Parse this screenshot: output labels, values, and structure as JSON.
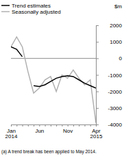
{
  "chart_data": {
    "type": "line",
    "y_label": "$m",
    "annotations": [
      "(a) A trend break has been applied to May 2014."
    ],
    "categories": [
      "Jan 2014",
      null,
      null,
      null,
      null,
      "Jun",
      null,
      null,
      null,
      null,
      "Nov",
      null,
      null,
      null,
      null,
      "Apr 2015"
    ],
    "series": [
      {
        "name": "Trend estimates",
        "color": "#000000",
        "values": [
          700,
          550,
          100,
          null,
          -1650,
          -1700,
          -1600,
          -1400,
          -1200,
          -1100,
          -1050,
          -1100,
          -1300,
          -1500,
          -1650,
          -1800
        ]
      },
      {
        "name": "Seasonally adjusted",
        "color": "#b0b0b0",
        "values": [
          700,
          1300,
          700,
          -800,
          -2100,
          -1800,
          -1300,
          -1100,
          -2000,
          -1000,
          -1200,
          -700,
          -1200,
          -1600,
          -1300,
          -3900
        ]
      }
    ],
    "ylim": [
      -4000,
      2000
    ],
    "yticks": [
      2000,
      1000,
      0,
      -1000,
      -2000,
      -3000,
      -4000
    ],
    "legend": "top-left",
    "grid": false
  }
}
